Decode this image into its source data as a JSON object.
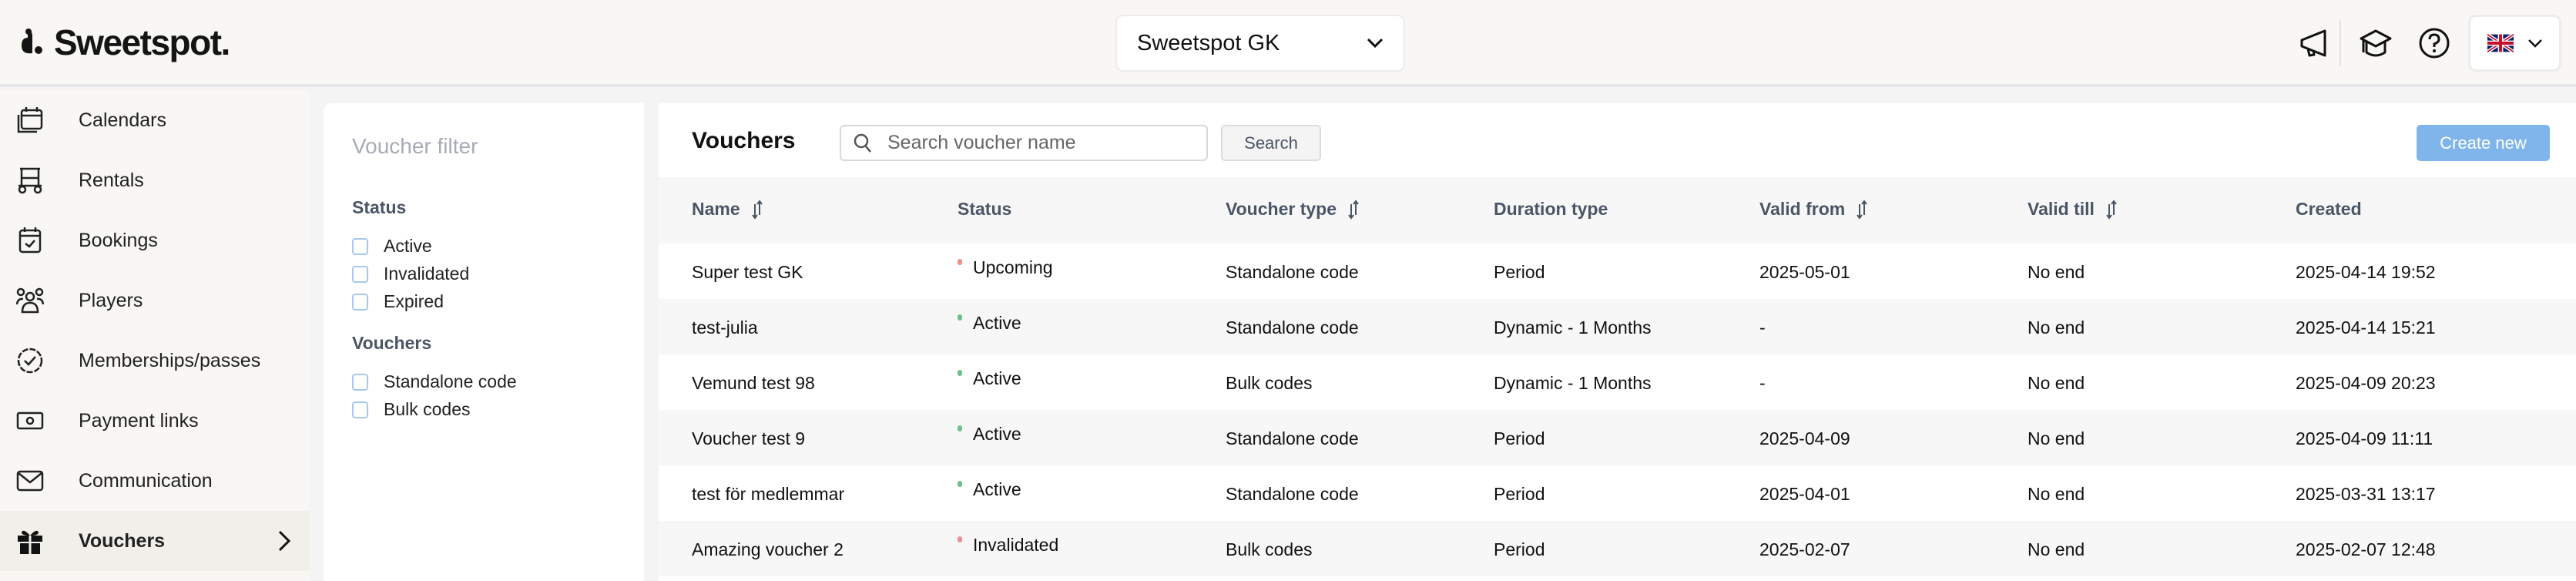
{
  "header": {
    "logo": "Sweetspot.",
    "club_selector": "Sweetspot GK",
    "icons": [
      "megaphone-icon",
      "graduation-cap-icon",
      "help-icon",
      "uk-flag-icon"
    ]
  },
  "sidebar": {
    "items": [
      {
        "label": "Calendars",
        "icon": "calendar-icon"
      },
      {
        "label": "Rentals",
        "icon": "golf-cart-icon"
      },
      {
        "label": "Bookings",
        "icon": "calendar-check-icon"
      },
      {
        "label": "Players",
        "icon": "users-icon"
      },
      {
        "label": "Memberships/passes",
        "icon": "badge-check-icon"
      },
      {
        "label": "Payment links",
        "icon": "money-icon"
      },
      {
        "label": "Communication",
        "icon": "envelope-icon"
      },
      {
        "label": "Vouchers",
        "icon": "gift-icon",
        "active": true
      }
    ]
  },
  "filter": {
    "title": "Voucher filter",
    "status_label": "Status",
    "status_options": [
      "Active",
      "Invalidated",
      "Expired"
    ],
    "vouchers_label": "Vouchers",
    "voucher_options": [
      "Standalone code",
      "Bulk codes"
    ]
  },
  "main": {
    "title": "Vouchers",
    "search_placeholder": "Search voucher name",
    "search_value": "",
    "search_button": "Search",
    "create_button": "Create new",
    "columns": [
      "Name",
      "Status",
      "Voucher type",
      "Duration type",
      "Valid from",
      "Valid till",
      "Created"
    ],
    "status_colors": {
      "Active": "#6cc08b",
      "Upcoming": "#f08c8c",
      "Invalidated": "#f08c8c"
    },
    "rows": [
      [
        "Super test GK",
        "Upcoming",
        "Standalone code",
        "Period",
        "2025-05-01",
        "No end",
        "2025-04-14 19:52"
      ],
      [
        "test-julia",
        "Active",
        "Standalone code",
        "Dynamic - 1 Months",
        "-",
        "No end",
        "2025-04-14 15:21"
      ],
      [
        "Vemund test 98",
        "Active",
        "Bulk codes",
        "Dynamic - 1 Months",
        "-",
        "No end",
        "2025-04-09 20:23"
      ],
      [
        "Voucher test 9",
        "Active",
        "Standalone code",
        "Period",
        "2025-04-09",
        "No end",
        "2025-04-09 11:11"
      ],
      [
        "test för medlemmar",
        "Active",
        "Standalone code",
        "Period",
        "2025-04-01",
        "No end",
        "2025-03-31 13:17"
      ],
      [
        "Amazing voucher 2",
        "Invalidated",
        "Bulk codes",
        "Period",
        "2025-02-07",
        "No end",
        "2025-02-07 12:48"
      ]
    ]
  }
}
